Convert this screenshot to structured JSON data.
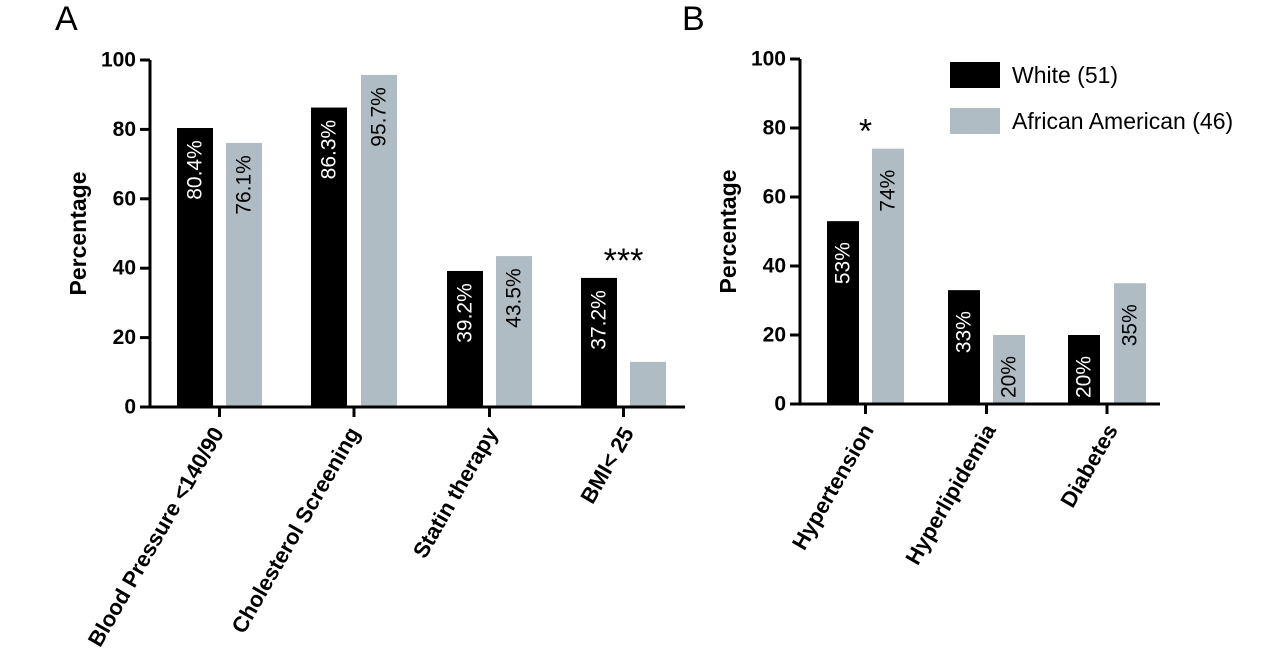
{
  "colors": {
    "White": "#000000",
    "African American": "#b0bcc4"
  },
  "legend": {
    "items": [
      {
        "name": "White (51)",
        "color": "#000000"
      },
      {
        "name": "African American (46)",
        "color": "#b0bcc4"
      }
    ]
  },
  "chart_data": [
    {
      "type": "bar",
      "panel": "A",
      "ylabel": "Percentage",
      "ylim": [
        0,
        100
      ],
      "yticks": [
        0,
        20,
        40,
        60,
        80,
        100
      ],
      "categories": [
        "Blood Pressure <140/90",
        "Cholesterol Screening",
        "Statin therapy",
        "BMI< 25"
      ],
      "series": [
        {
          "name": "White (51)",
          "values": [
            80.4,
            86.3,
            39.2,
            37.2
          ],
          "labels": [
            "80.4%",
            "86.3%",
            "39.2%",
            "37.2%"
          ]
        },
        {
          "name": "African American (46)",
          "values": [
            76.1,
            95.7,
            43.5,
            13.0
          ],
          "labels": [
            "76.1%",
            "95.7%",
            "43.5%",
            ""
          ]
        }
      ],
      "significance": [
        "",
        "",
        "",
        "***"
      ]
    },
    {
      "type": "bar",
      "panel": "B",
      "ylabel": "Percentage",
      "ylim": [
        0,
        100
      ],
      "yticks": [
        0,
        20,
        40,
        60,
        80,
        100
      ],
      "categories": [
        "Hypertension",
        "Hyperlipidemia",
        "Diabetes"
      ],
      "series": [
        {
          "name": "White (51)",
          "values": [
            53,
            33,
            20
          ],
          "labels": [
            "53%",
            "33%",
            "20%"
          ]
        },
        {
          "name": "African American (46)",
          "values": [
            74,
            20,
            35
          ],
          "labels": [
            "74%",
            "20%",
            "35%"
          ]
        }
      ],
      "significance": [
        "*",
        "",
        ""
      ]
    }
  ]
}
